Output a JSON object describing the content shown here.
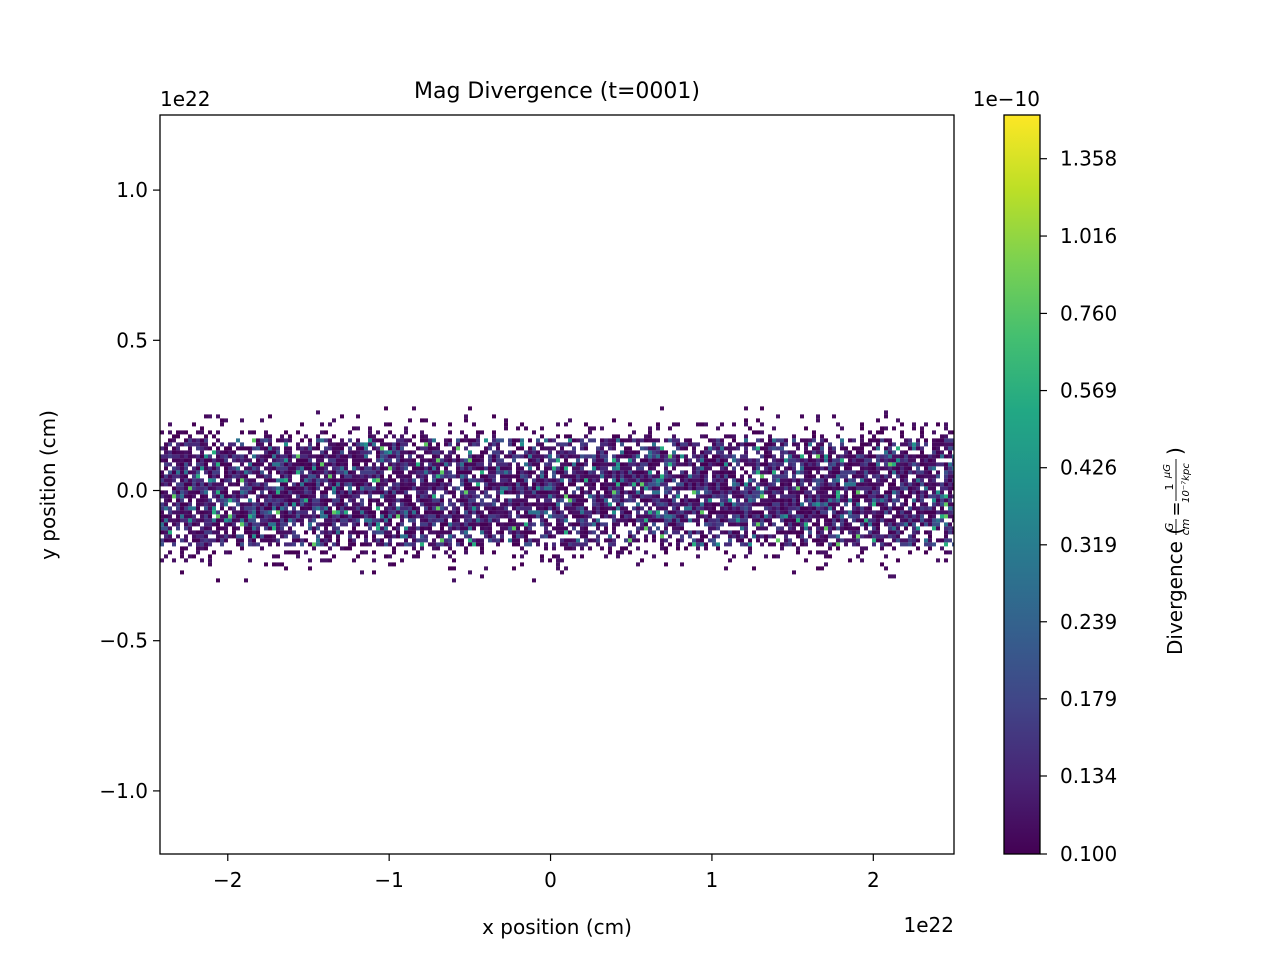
{
  "chart_data": {
    "type": "heatmap",
    "title": "Mag Divergence (t=0001)",
    "xlabel": "x position (cm)",
    "ylabel": "y position (cm)",
    "x_offset_label": "1e22",
    "y_offset_label": "1e22",
    "xlim": [
      -2.42,
      2.5
    ],
    "ylim": [
      -1.21,
      1.25
    ],
    "x_ticks": [
      -2,
      -1,
      0,
      1,
      2
    ],
    "x_tick_labels": [
      "−2",
      "−1",
      "0",
      "1",
      "2"
    ],
    "y_ticks": [
      -1.0,
      -0.5,
      0.0,
      0.5,
      1.0
    ],
    "y_tick_labels": [
      "−1.0",
      "−0.5",
      "0.0",
      "0.5",
      "1.0"
    ],
    "grid": false,
    "band": {
      "y_center": 0.0,
      "core_half_width": 0.18,
      "outer_half_width": 0.26
    },
    "colorbar": {
      "label": "Divergence ($\\frac{G}{cm} = \\frac{1}{10^{-7}kpc}\\frac{\\mu G}{}$)",
      "label_main": "Divergence (",
      "label_frac1_num": "G",
      "label_frac1_den": "cm",
      "label_equals": "=",
      "label_frac2_num": "1",
      "label_frac2_den": "10⁻⁷kpc",
      "label_frac3_num": "μG",
      "label_close": ")",
      "offset_label": "1e−10",
      "colormap": "viridis",
      "scale": "log",
      "range": [
        0.1,
        1.6
      ],
      "ticks": [
        0.1,
        0.134,
        0.179,
        0.239,
        0.319,
        0.426,
        0.569,
        0.76,
        1.016,
        1.358
      ],
      "tick_labels": [
        "0.100",
        "0.134",
        "0.179",
        "0.239",
        "0.319",
        "0.426",
        "0.569",
        "0.760",
        "1.016",
        "1.358"
      ]
    }
  }
}
